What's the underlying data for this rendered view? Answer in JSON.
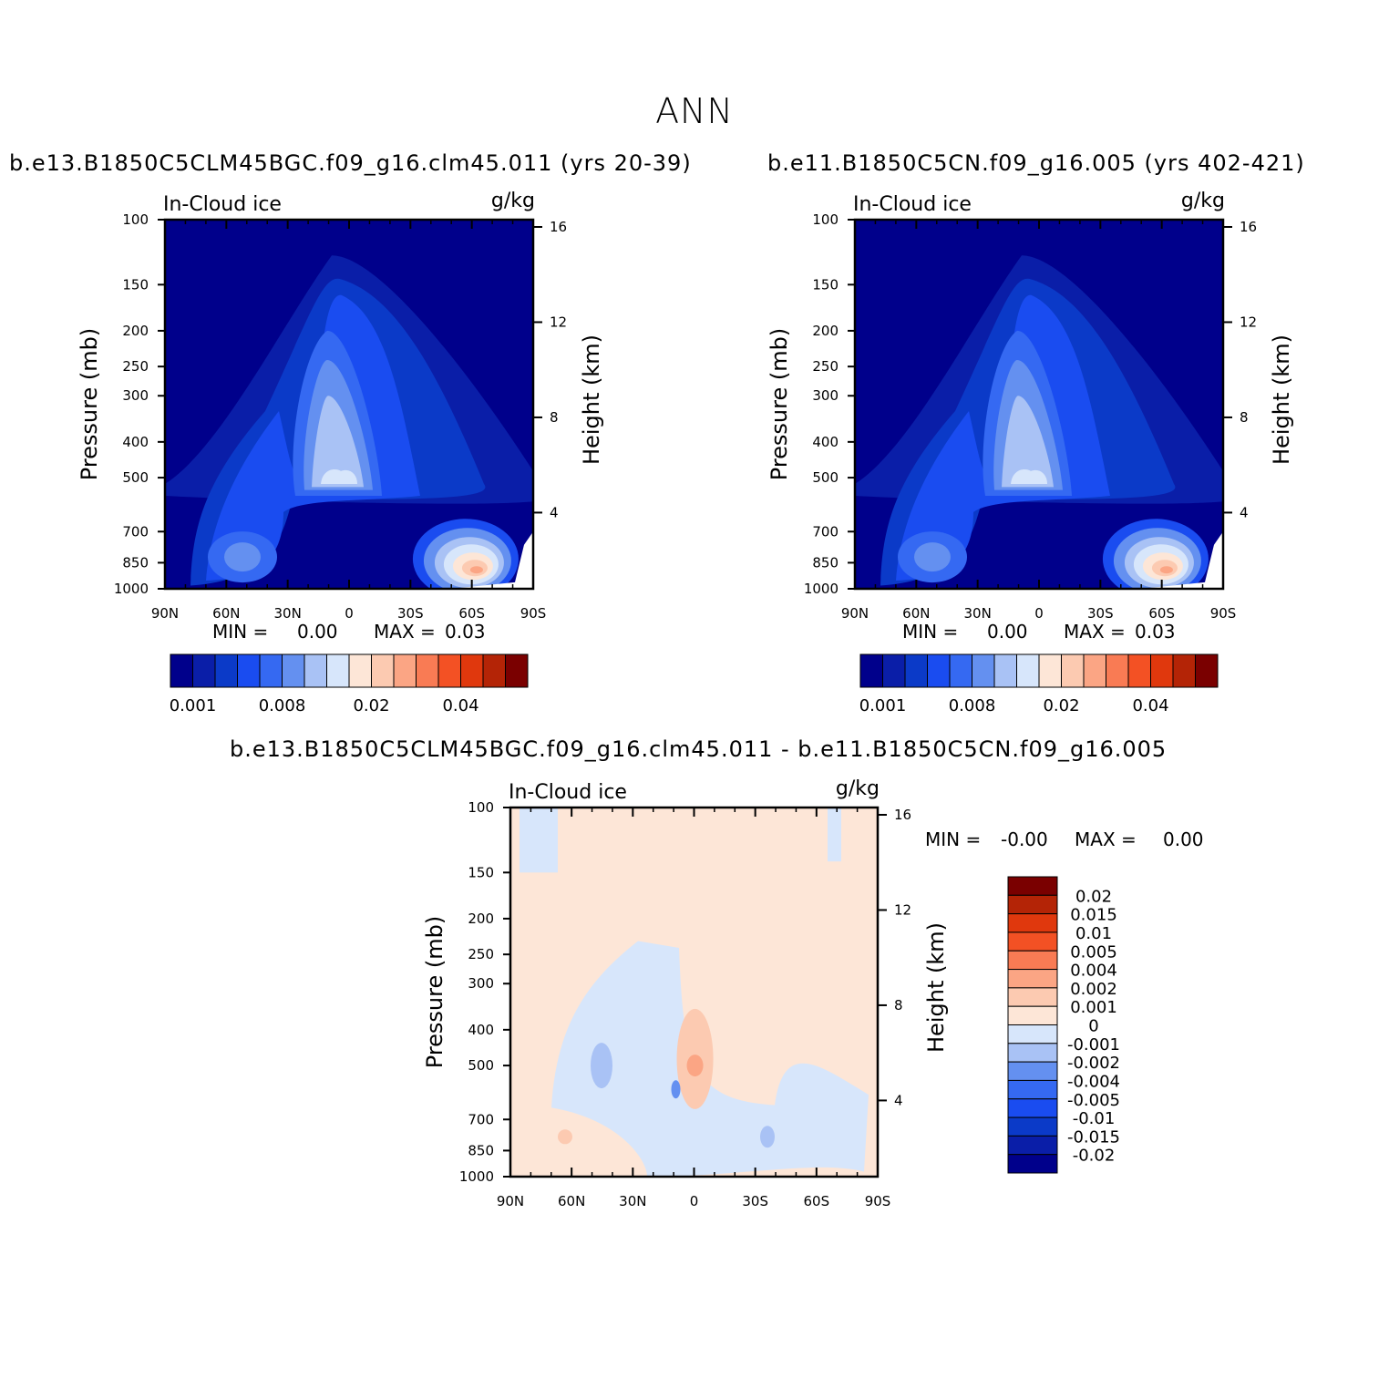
{
  "figure": {
    "title": "ANN",
    "case1": "b.e13.B1850C5CLM45BGC.f09_g16.clm45.011 (yrs 20-39)",
    "case2": "b.e11.B1850C5CN.f09_g16.005 (yrs 402-421)",
    "diff_title": "b.e13.B1850C5CLM45BGC.f09_g16.clm45.011 - b.e11.B1850C5CN.f09_g16.005"
  },
  "colors": {
    "abs_levels": [
      "#00008b",
      "#0a1ea8",
      "#0b3ac8",
      "#1a4cf0",
      "#3569f2",
      "#6490f0",
      "#a9c2f5",
      "#d7e6fb",
      "#fde6d7",
      "#fccab1",
      "#fba584",
      "#f97b54",
      "#f35124",
      "#e0380d",
      "#b42406",
      "#7a0000"
    ],
    "diff_levels": [
      "#7a0000",
      "#b42406",
      "#e0380d",
      "#f35124",
      "#f97b54",
      "#fba584",
      "#fccab1",
      "#fde6d7",
      "#d7e6fb",
      "#a9c2f5",
      "#6490f0",
      "#3569f2",
      "#1a4cf0",
      "#0b3ac8",
      "#0a1ea8",
      "#00008b"
    ]
  },
  "chart_data": [
    {
      "type": "heatmap",
      "panel": "case1",
      "field": "In-Cloud ice",
      "units": "g/kg",
      "ylabel": "Pressure (mb)",
      "y2label": "Height (km)",
      "x_ticks": [
        "90N",
        "60N",
        "30N",
        "0",
        "30S",
        "60S",
        "90S"
      ],
      "y_ticks": [
        "100",
        "150",
        "200",
        "250",
        "300",
        "400",
        "500",
        "700",
        "850",
        "1000"
      ],
      "y2_ticks": [
        "16",
        "12",
        "8",
        "4"
      ],
      "y_log_scale": true,
      "ylim": [
        1000,
        100
      ],
      "xlim": [
        90,
        -90
      ],
      "min_label": "MIN =",
      "min_value": "0.00",
      "max_label": "MAX =",
      "max_value": "0.03",
      "colorbar_labels": [
        "0.001",
        "0.008",
        "0.02",
        "0.04"
      ]
    },
    {
      "type": "heatmap",
      "panel": "case2",
      "field": "In-Cloud ice",
      "units": "g/kg",
      "ylabel": "Pressure (mb)",
      "y2label": "Height (km)",
      "x_ticks": [
        "90N",
        "60N",
        "30N",
        "0",
        "30S",
        "60S",
        "90S"
      ],
      "y_ticks": [
        "100",
        "150",
        "200",
        "250",
        "300",
        "400",
        "500",
        "700",
        "850",
        "1000"
      ],
      "y2_ticks": [
        "16",
        "12",
        "8",
        "4"
      ],
      "y_log_scale": true,
      "ylim": [
        1000,
        100
      ],
      "xlim": [
        90,
        -90
      ],
      "min_label": "MIN =",
      "min_value": "0.00",
      "max_label": "MAX =",
      "max_value": "0.03",
      "colorbar_labels": [
        "0.001",
        "0.008",
        "0.02",
        "0.04"
      ]
    },
    {
      "type": "heatmap",
      "panel": "difference",
      "field": "In-Cloud ice",
      "units": "g/kg",
      "ylabel": "Pressure (mb)",
      "y2label": "Height (km)",
      "x_ticks": [
        "90N",
        "60N",
        "30N",
        "0",
        "30S",
        "60S",
        "90S"
      ],
      "y_ticks": [
        "100",
        "150",
        "200",
        "250",
        "300",
        "400",
        "500",
        "700",
        "850",
        "1000"
      ],
      "y2_ticks": [
        "16",
        "12",
        "8",
        "4"
      ],
      "y_log_scale": true,
      "ylim": [
        1000,
        100
      ],
      "xlim": [
        90,
        -90
      ],
      "min_label": "MIN =",
      "min_value": "-0.00",
      "max_label": "MAX =",
      "max_value": "0.00",
      "colorbar_labels": [
        "0.02",
        "0.015",
        "0.01",
        "0.005",
        "0.004",
        "0.002",
        "0.001",
        "0",
        "-0.001",
        "-0.002",
        "-0.004",
        "-0.005",
        "-0.01",
        "-0.015",
        "-0.02"
      ]
    }
  ]
}
